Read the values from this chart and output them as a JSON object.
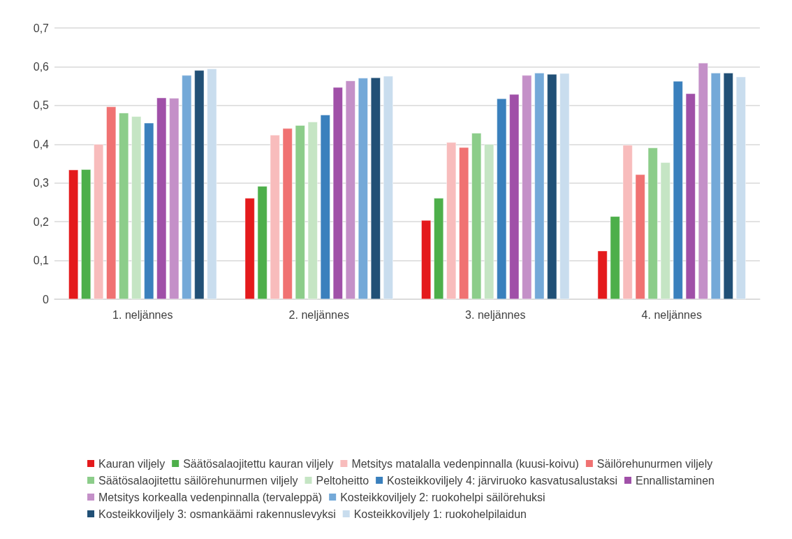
{
  "chart_data": {
    "type": "bar",
    "categories": [
      "1. neljännes",
      "2. neljännes",
      "3. neljännes",
      "4. neljännes"
    ],
    "series": [
      {
        "name": "Kauran viljely",
        "color": "#e41a1c",
        "values": [
          0.334,
          0.261,
          0.204,
          0.125
        ]
      },
      {
        "name": "Säätösalaojitettu kauran viljely",
        "color": "#4daf4a",
        "values": [
          0.335,
          0.292,
          0.261,
          0.214
        ]
      },
      {
        "name": "Metsitys matalalla vedenpinnalla (kuusi-koivu)",
        "color": "#f8bcbc",
        "values": [
          0.4,
          0.424,
          0.405,
          0.398
        ]
      },
      {
        "name": "Säilörehunurmen viljely",
        "color": "#f07272",
        "values": [
          0.497,
          0.441,
          0.392,
          0.322
        ]
      },
      {
        "name": "Säätösalaojitettu säilörehunurmen viljely",
        "color": "#8ccd8a",
        "values": [
          0.481,
          0.449,
          0.429,
          0.391
        ]
      },
      {
        "name": "Peltoheitto",
        "color": "#c5e5c4",
        "values": [
          0.472,
          0.458,
          0.4,
          0.353
        ]
      },
      {
        "name": "Kosteikkoviljely 4: järviruoko kasvatusalustaksi",
        "color": "#3a80bd",
        "values": [
          0.455,
          0.476,
          0.518,
          0.563
        ]
      },
      {
        "name": "Ennallistaminen",
        "color": "#a050a8",
        "values": [
          0.52,
          0.547,
          0.529,
          0.531
        ]
      },
      {
        "name": "Metsitys korkealla vedenpinnalla (tervaleppä)",
        "color": "#c490c8",
        "values": [
          0.519,
          0.564,
          0.578,
          0.61
        ]
      },
      {
        "name": "Kosteikkoviljely 2: ruokohelpi säilörehuksi",
        "color": "#74a9d8",
        "values": [
          0.578,
          0.571,
          0.584,
          0.584
        ]
      },
      {
        "name": "Kosteikkoviljely 3: osmankäämi rakennuslevyksi",
        "color": "#215076",
        "values": [
          0.591,
          0.572,
          0.581,
          0.584
        ]
      },
      {
        "name": "Kosteikkoviljely 1: ruokohelpilaidun",
        "color": "#c9ddee",
        "values": [
          0.595,
          0.576,
          0.583,
          0.574
        ]
      }
    ],
    "ylim": [
      0,
      0.7
    ],
    "yticks": [
      {
        "value": 0,
        "label": "0"
      },
      {
        "value": 0.1,
        "label": "0,1"
      },
      {
        "value": 0.2,
        "label": "0,2"
      },
      {
        "value": 0.3,
        "label": "0,3"
      },
      {
        "value": 0.4,
        "label": "0,4"
      },
      {
        "value": 0.5,
        "label": "0,5"
      },
      {
        "value": 0.6,
        "label": "0,6"
      },
      {
        "value": 0.7,
        "label": "0,7"
      }
    ],
    "grid": "y",
    "legend": "bottom"
  }
}
